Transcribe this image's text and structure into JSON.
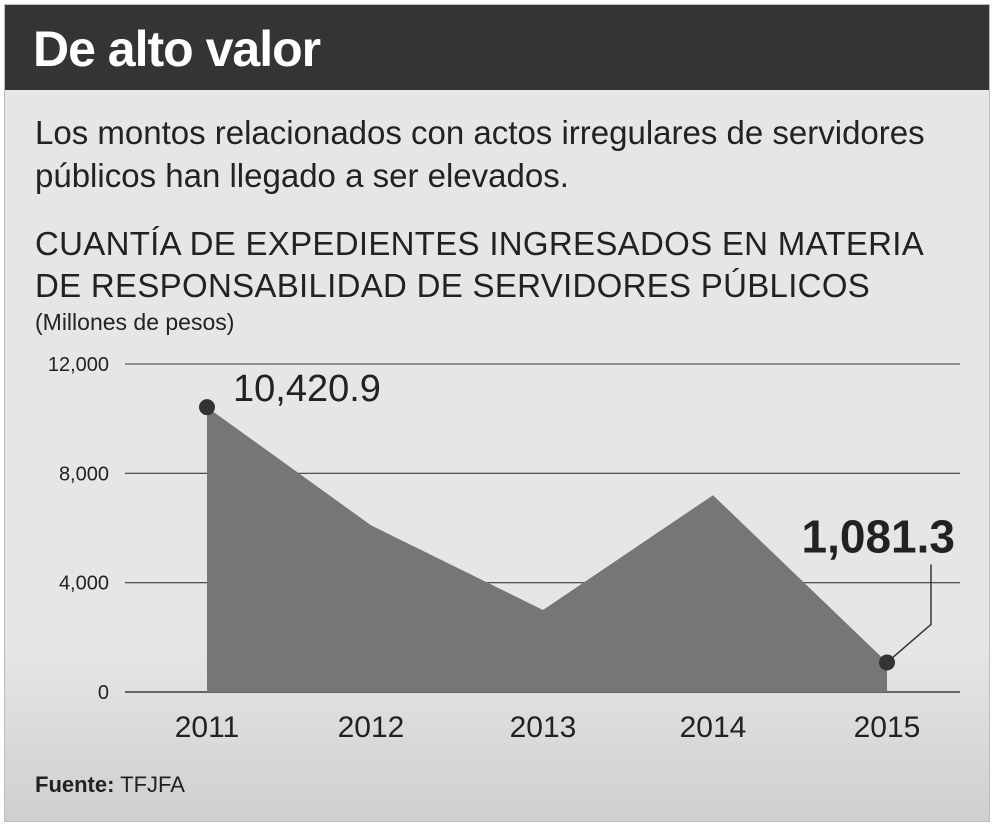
{
  "header": {
    "title": "De alto valor",
    "subtitle": "Los montos relacionados con actos irregulares de servidores públicos han llegado a ser elevados."
  },
  "chart_data": {
    "type": "area",
    "title": "CUANTÍA DE EXPEDIENTES INGRESADOS EN MATERIA DE RESPONSABILIDAD DE SERVIDORES PÚBLICOS",
    "ylabel": "(Millones de pesos)",
    "xlabel": "",
    "categories": [
      "2011",
      "2012",
      "2013",
      "2014",
      "2015"
    ],
    "values": [
      10420.9,
      6100,
      3000,
      7200,
      1081.3
    ],
    "ylim": [
      0,
      12000
    ],
    "yticks": [
      0,
      4000,
      8000,
      12000
    ],
    "ytick_labels": [
      "0",
      "4,000",
      "8,000",
      "12,000"
    ],
    "grid": true,
    "annotations": [
      {
        "index": 0,
        "text": "10,420.9"
      },
      {
        "index": 4,
        "text": "1,081.3"
      }
    ],
    "colors": {
      "area": "#767676",
      "marker": "#333333",
      "grid": "#3a3a3a"
    }
  },
  "footer": {
    "source_label": "Fuente:",
    "source_value": "TFJFA"
  }
}
